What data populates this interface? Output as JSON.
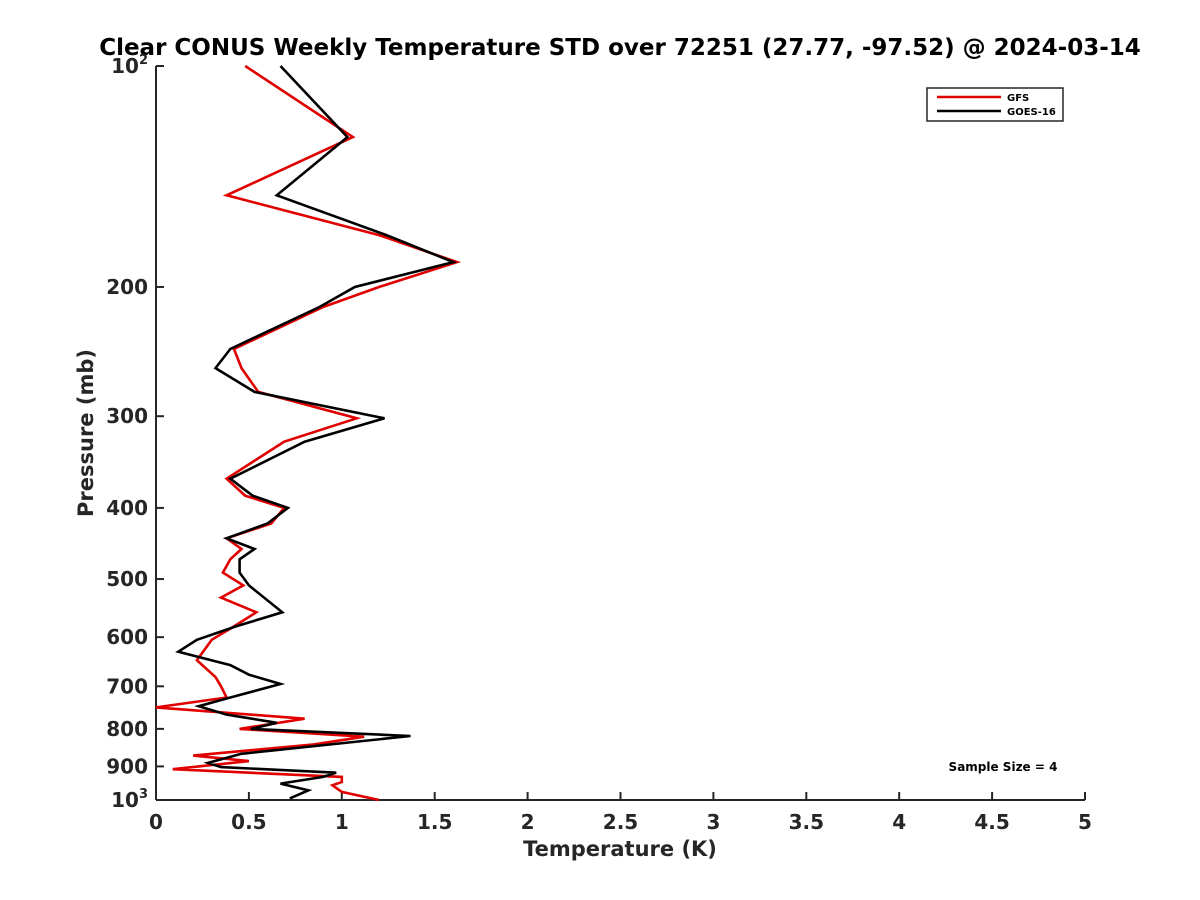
{
  "chart_data": {
    "type": "line",
    "title": "Clear CONUS Weekly Temperature STD over 72251 (27.77, -97.52) @ 2024-03-14",
    "xlabel": "Temperature (K)",
    "ylabel": "Pressure (mb)",
    "xlim": [
      0,
      5
    ],
    "ylim": [
      100,
      1000
    ],
    "y_scale": "log",
    "y_reversed": true,
    "x_ticks": [
      "0",
      "0.5",
      "1",
      "1.5",
      "2",
      "2.5",
      "3",
      "3.5",
      "4",
      "4.5",
      "5"
    ],
    "y_ticks": [
      {
        "value": 100,
        "base": "10",
        "exp": "2"
      },
      {
        "value": 200,
        "label": "200"
      },
      {
        "value": 300,
        "label": "300"
      },
      {
        "value": 400,
        "label": "400"
      },
      {
        "value": 500,
        "label": "500"
      },
      {
        "value": 600,
        "label": "600"
      },
      {
        "value": 700,
        "label": "700"
      },
      {
        "value": 800,
        "label": "800"
      },
      {
        "value": 900,
        "label": "900"
      },
      {
        "value": 1000,
        "base": "10",
        "exp": "3"
      }
    ],
    "grid": false,
    "legend_position": "top-right",
    "annotation": "Sample Size = 4",
    "series": [
      {
        "name": "GFS",
        "color": "#e00000",
        "points": [
          [
            0.48,
            100
          ],
          [
            1.06,
            125
          ],
          [
            0.38,
            150
          ],
          [
            1.2,
            170
          ],
          [
            1.62,
            185
          ],
          [
            1.2,
            200
          ],
          [
            0.9,
            213
          ],
          [
            0.42,
            243
          ],
          [
            0.46,
            258
          ],
          [
            0.55,
            278
          ],
          [
            1.08,
            302
          ],
          [
            0.69,
            325
          ],
          [
            0.38,
            365
          ],
          [
            0.48,
            385
          ],
          [
            0.69,
            400
          ],
          [
            0.62,
            420
          ],
          [
            0.38,
            440
          ],
          [
            0.46,
            455
          ],
          [
            0.4,
            470
          ],
          [
            0.36,
            490
          ],
          [
            0.47,
            510
          ],
          [
            0.35,
            530
          ],
          [
            0.54,
            555
          ],
          [
            0.42,
            580
          ],
          [
            0.3,
            605
          ],
          [
            0.22,
            645
          ],
          [
            0.32,
            680
          ],
          [
            0.35,
            700
          ],
          [
            0.38,
            725
          ],
          [
            0.0,
            748
          ],
          [
            0.8,
            775
          ],
          [
            0.45,
            800
          ],
          [
            1.12,
            820
          ],
          [
            0.85,
            840
          ],
          [
            0.2,
            870
          ],
          [
            0.5,
            885
          ],
          [
            0.09,
            908
          ],
          [
            1.0,
            930
          ],
          [
            1.0,
            945
          ],
          [
            0.95,
            955
          ],
          [
            1.0,
            975
          ],
          [
            1.2,
            1000
          ]
        ]
      },
      {
        "name": "GOES-16",
        "color": "#000000",
        "points": [
          [
            0.67,
            100
          ],
          [
            1.03,
            125
          ],
          [
            0.65,
            150
          ],
          [
            1.24,
            170
          ],
          [
            1.6,
            185
          ],
          [
            1.07,
            200
          ],
          [
            0.88,
            213
          ],
          [
            0.4,
            243
          ],
          [
            0.32,
            258
          ],
          [
            0.53,
            278
          ],
          [
            1.23,
            302
          ],
          [
            0.8,
            325
          ],
          [
            0.4,
            365
          ],
          [
            0.52,
            385
          ],
          [
            0.71,
            400
          ],
          [
            0.6,
            420
          ],
          [
            0.38,
            440
          ],
          [
            0.53,
            455
          ],
          [
            0.45,
            470
          ],
          [
            0.45,
            490
          ],
          [
            0.5,
            510
          ],
          [
            0.68,
            555
          ],
          [
            0.43,
            580
          ],
          [
            0.22,
            605
          ],
          [
            0.12,
            628
          ],
          [
            0.4,
            655
          ],
          [
            0.5,
            675
          ],
          [
            0.67,
            695
          ],
          [
            0.4,
            725
          ],
          [
            0.23,
            745
          ],
          [
            0.38,
            765
          ],
          [
            0.65,
            785
          ],
          [
            0.51,
            800
          ],
          [
            1.37,
            818
          ],
          [
            0.46,
            865
          ],
          [
            0.28,
            890
          ],
          [
            0.35,
            902
          ],
          [
            0.97,
            918
          ],
          [
            0.9,
            930
          ],
          [
            0.67,
            950
          ],
          [
            0.82,
            970
          ],
          [
            0.72,
            995
          ]
        ]
      }
    ]
  }
}
